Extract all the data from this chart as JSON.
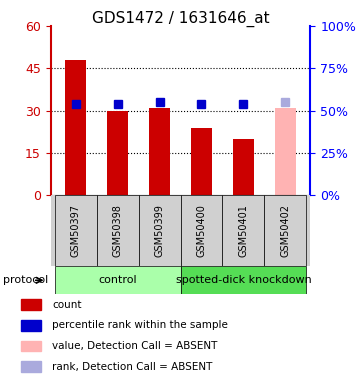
{
  "title": "GDS1472 / 1631646_at",
  "samples": [
    "GSM50397",
    "GSM50398",
    "GSM50399",
    "GSM50400",
    "GSM50401",
    "GSM50402"
  ],
  "bar_values": [
    48,
    30,
    31,
    24,
    20,
    31
  ],
  "bar_colors": [
    "#cc0000",
    "#cc0000",
    "#cc0000",
    "#cc0000",
    "#cc0000",
    "#ffb3b3"
  ],
  "rank_values": [
    54,
    54,
    55,
    54,
    54,
    55
  ],
  "rank_colors": [
    "#0000cc",
    "#0000cc",
    "#0000cc",
    "#0000cc",
    "#0000cc",
    "#aaaadd"
  ],
  "ylim_left": [
    0,
    60
  ],
  "ylim_right": [
    0,
    100
  ],
  "yticks_left": [
    0,
    15,
    30,
    45,
    60
  ],
  "yticks_right": [
    0,
    25,
    50,
    75,
    100
  ],
  "ytick_labels_left": [
    "0",
    "15",
    "30",
    "45",
    "60"
  ],
  "ytick_labels_right": [
    "0%",
    "25%",
    "50%",
    "75%",
    "100%"
  ],
  "groups": [
    {
      "label": "control",
      "samples": [
        0,
        1,
        2
      ],
      "color": "#aaffaa"
    },
    {
      "label": "spotted-dick knockdown",
      "samples": [
        3,
        4,
        5
      ],
      "color": "#55dd55"
    }
  ],
  "protocol_label": "protocol",
  "legend_items": [
    {
      "color": "#cc0000",
      "label": "count"
    },
    {
      "color": "#0000cc",
      "label": "percentile rank within the sample"
    },
    {
      "color": "#ffb3b3",
      "label": "value, Detection Call = ABSENT"
    },
    {
      "color": "#aaaadd",
      "label": "rank, Detection Call = ABSENT"
    }
  ],
  "left_axis_color": "#cc0000",
  "right_axis_color": "#0000ff"
}
